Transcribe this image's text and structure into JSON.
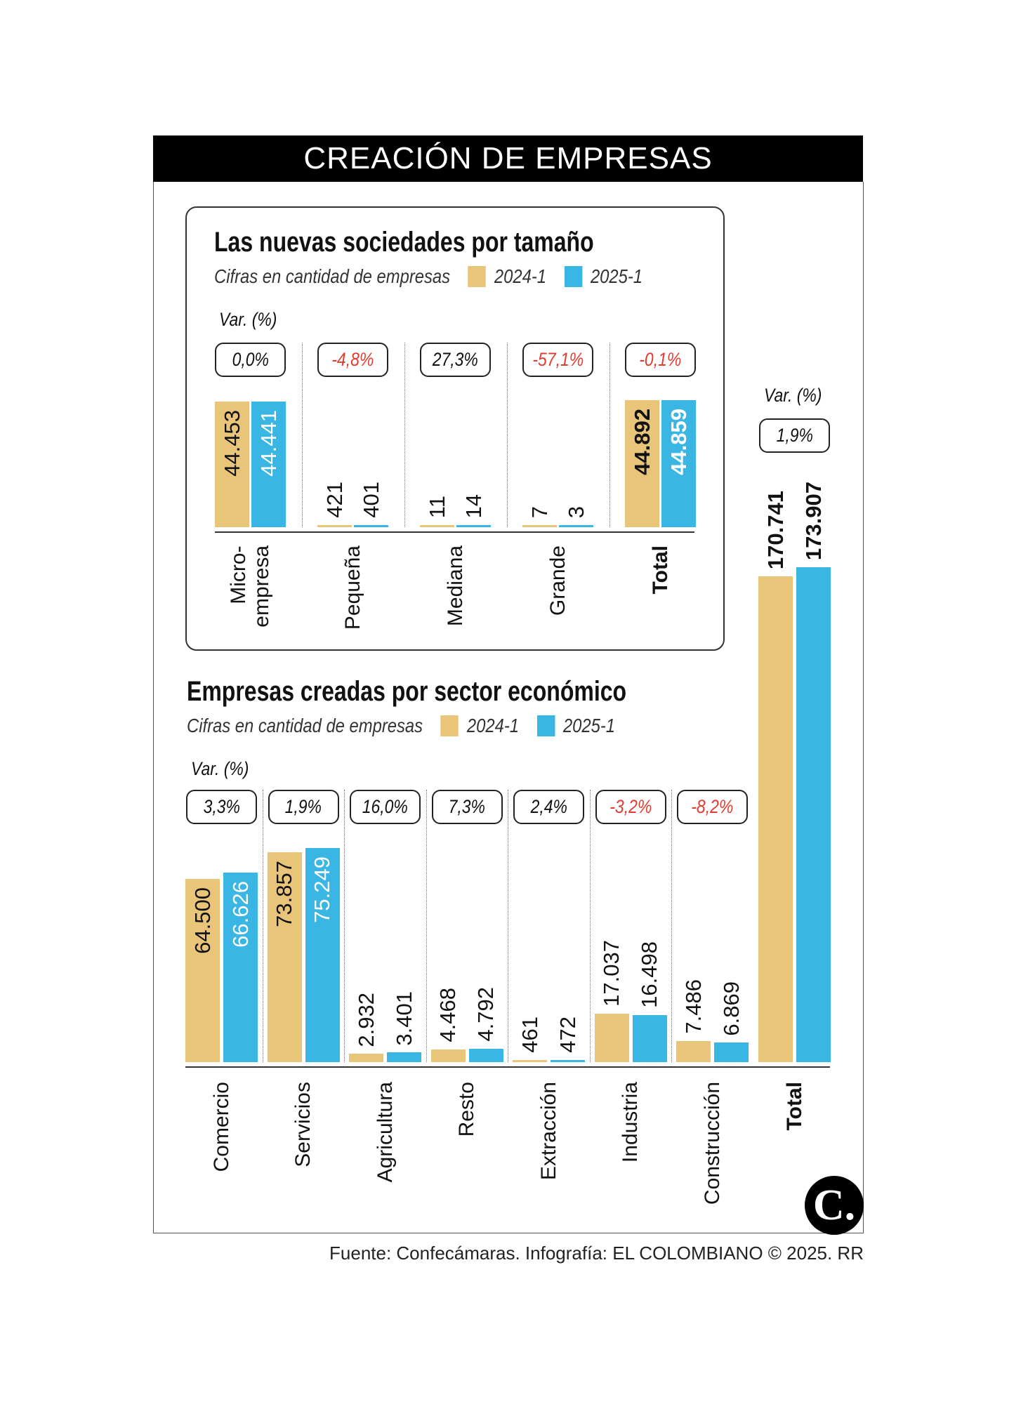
{
  "header": {
    "title": "CREACIÓN DE EMPRESAS"
  },
  "colors": {
    "series_2024": "#E9C57A",
    "series_2025": "#3AB6E4",
    "negative": "#E03C31"
  },
  "chart_data": [
    {
      "type": "bar",
      "title": "Las nuevas sociedades por tamaño",
      "subtitle": "Cifras en cantidad de empresas",
      "legend": [
        "2024-1",
        "2025-1"
      ],
      "var_label": "Var. (%)",
      "categories": [
        "Micro-\nempresa",
        "Pequeña",
        "Mediana",
        "Grande",
        "Total"
      ],
      "bold": [
        false,
        false,
        false,
        false,
        true
      ],
      "variation": [
        "0,0%",
        "-4,8%",
        "27,3%",
        "-57,1%",
        "-0,1%"
      ],
      "series": [
        {
          "name": "2024-1",
          "values": [
            44453,
            421,
            11,
            7,
            44892
          ],
          "labels": [
            "44.453",
            "421",
            "11",
            "7",
            "44.892"
          ]
        },
        {
          "name": "2025-1",
          "values": [
            44441,
            401,
            14,
            3,
            44859
          ],
          "labels": [
            "44.441",
            "401",
            "14",
            "3",
            "44.859"
          ]
        }
      ]
    },
    {
      "type": "bar",
      "title": "Empresas creadas por sector económico",
      "subtitle": "Cifras en cantidad de empresas",
      "legend": [
        "2024-1",
        "2025-1"
      ],
      "var_label": "Var. (%)",
      "categories": [
        "Comercio",
        "Servicios",
        "Agricultura",
        "Resto",
        "Extracción",
        "Industria",
        "Construcción"
      ],
      "bold": [
        false,
        false,
        false,
        false,
        false,
        false,
        false
      ],
      "variation": [
        "3,3%",
        "1,9%",
        "16,0%",
        "7,3%",
        "2,4%",
        "-3,2%",
        "-8,2%"
      ],
      "series": [
        {
          "name": "2024-1",
          "values": [
            64500,
            73857,
            2932,
            4468,
            461,
            17037,
            7486
          ],
          "labels": [
            "64.500",
            "73.857",
            "2.932",
            "4.468",
            "461",
            "17.037",
            "7.486"
          ]
        },
        {
          "name": "2025-1",
          "values": [
            66626,
            75249,
            3401,
            4792,
            472,
            16498,
            6869
          ],
          "labels": [
            "66.626",
            "75.249",
            "3.401",
            "4.792",
            "472",
            "16.498",
            "6.869"
          ]
        }
      ]
    },
    {
      "type": "bar",
      "title": "",
      "var_label": "Var. (%)",
      "categories": [
        "Total"
      ],
      "bold": [
        true
      ],
      "variation": [
        "1,9%"
      ],
      "series": [
        {
          "name": "2024-1",
          "values": [
            170741
          ],
          "labels": [
            "170.741"
          ]
        },
        {
          "name": "2025-1",
          "values": [
            173907
          ],
          "labels": [
            "173.907"
          ]
        }
      ]
    }
  ],
  "footer": "Fuente: Confecámaras. Infografía: EL COLOMBIANO © 2025. RR",
  "logo_text": "C."
}
